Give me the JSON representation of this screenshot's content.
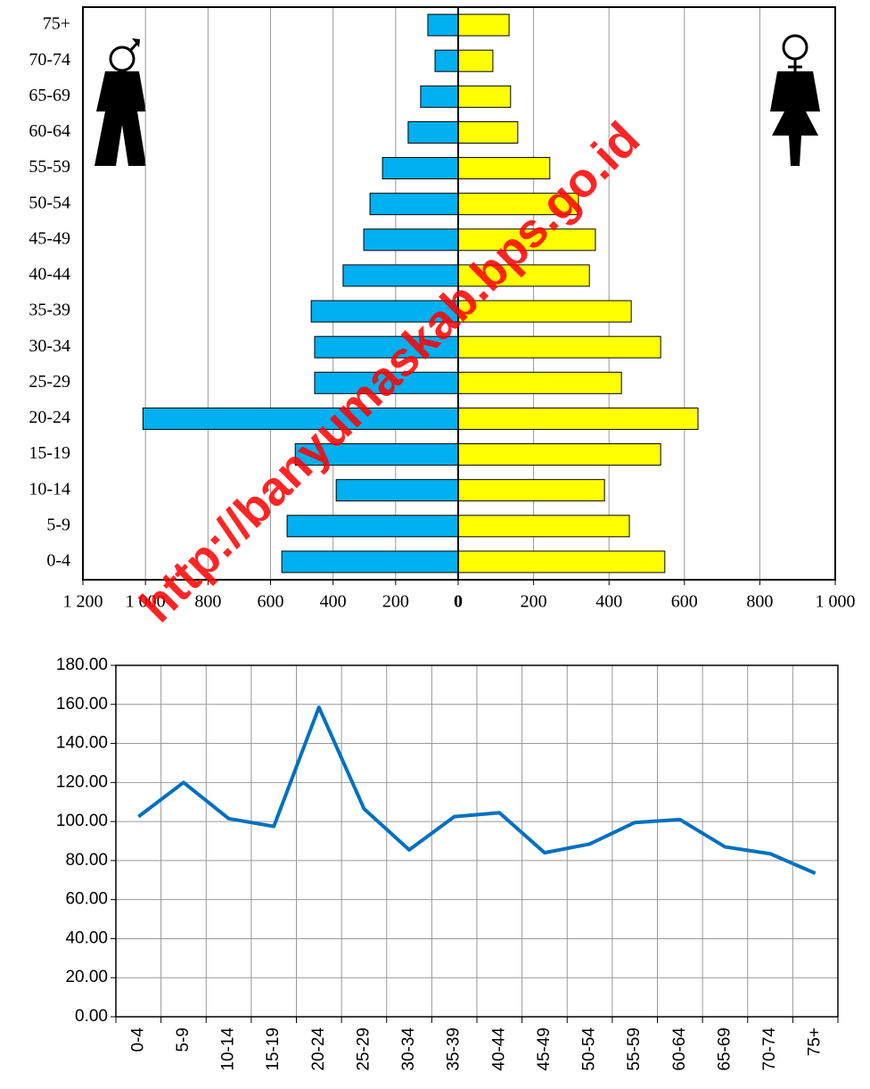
{
  "chart_data": [
    {
      "type": "pyramid",
      "categories": [
        "0-4",
        "5-9",
        "10-14",
        "15-19",
        "20-24",
        "25-29",
        "30-34",
        "35-39",
        "40-44",
        "45-49",
        "50-54",
        "55-59",
        "60-64",
        "65-69",
        "70-74",
        "75+"
      ],
      "series": [
        {
          "color": "#00b0f0",
          "values": [
            564,
            547,
            390,
            521,
            1008,
            459,
            459,
            470,
            368,
            302,
            282,
            242,
            160,
            120,
            74,
            97
          ]
        },
        {
          "color": "#ffff00",
          "values": [
            548,
            454,
            388,
            537,
            636,
            433,
            537,
            459,
            348,
            364,
            319,
            243,
            158,
            139,
            92,
            135
          ]
        }
      ],
      "left_xlim": [
        0,
        1200
      ],
      "left_xticks": [
        0,
        200,
        400,
        600,
        800,
        {
          "value": 1000,
          "label": "1 000"
        },
        {
          "value": 1200,
          "label": "1 200"
        }
      ],
      "right_xlim": [
        0,
        1000
      ],
      "right_xticks": [
        200,
        400,
        600,
        800,
        {
          "value": 1000,
          "label": "1 000"
        }
      ],
      "grid": true
    },
    {
      "type": "line",
      "categories": [
        "0-4",
        "5-9",
        "10-14",
        "15-19",
        "20-24",
        "25-29",
        "30-34",
        "35-39",
        "40-44",
        "45-49",
        "50-54",
        "55-59",
        "60-64",
        "65-69",
        "70-74",
        "75+"
      ],
      "values": [
        102.5,
        120,
        101.5,
        97.5,
        158.5,
        106.5,
        85.5,
        102.5,
        104.5,
        84,
        88.5,
        99.5,
        101,
        87,
        83.5,
        73.5
      ],
      "color": "#0070c0",
      "ylim": [
        0,
        180
      ],
      "yticks": [
        {
          "value": 0,
          "label": "0.00"
        },
        {
          "value": 20,
          "label": "20.00"
        },
        {
          "value": 40,
          "label": "40.00"
        },
        {
          "value": 60,
          "label": "60.00"
        },
        {
          "value": 80,
          "label": "80.00"
        },
        {
          "value": 100,
          "label": "100.00"
        },
        {
          "value": 120,
          "label": "120.00"
        },
        {
          "value": 140,
          "label": "140.00"
        },
        {
          "value": 160,
          "label": "160.00"
        },
        {
          "value": 180,
          "label": "180.00"
        }
      ],
      "grid": true
    }
  ],
  "watermark": "http://banyumaskab.bps.go.id"
}
